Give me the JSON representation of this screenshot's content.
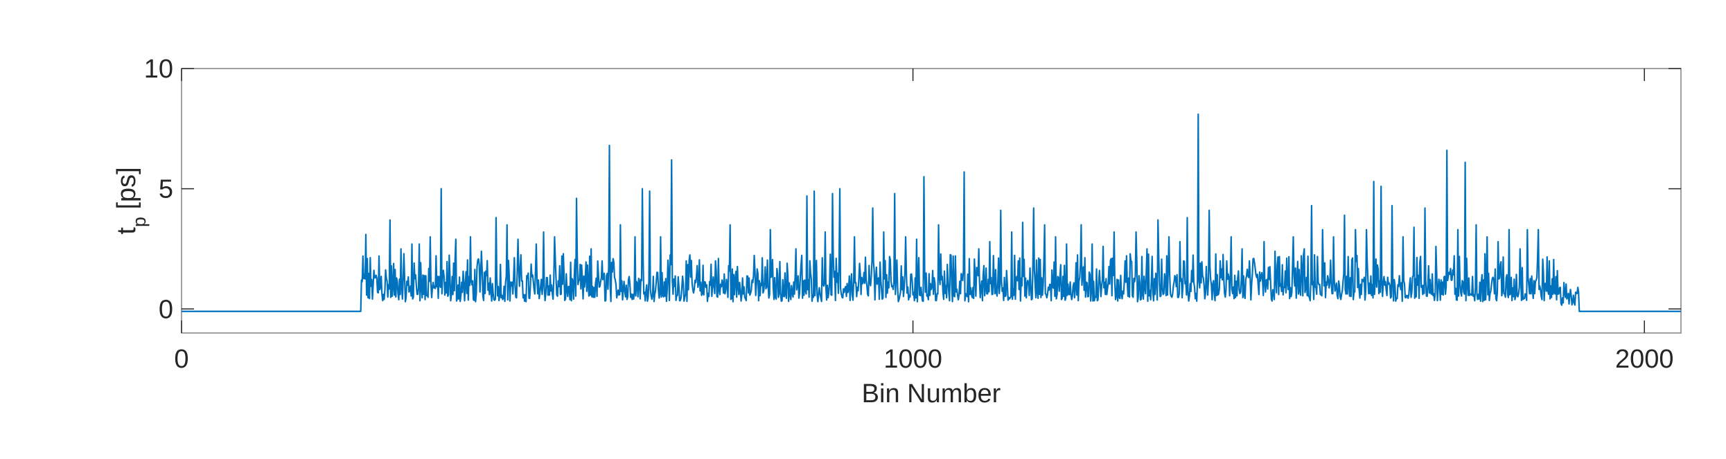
{
  "chart_data": {
    "type": "line",
    "title": "",
    "xlabel": "Bin Number",
    "ylabel_main": "t",
    "ylabel_sub": "p",
    "ylabel_unit": " [ps]",
    "xlim": [
      0,
      2050
    ],
    "ylim": [
      -1,
      10
    ],
    "xticks": [
      0,
      1000,
      2000
    ],
    "xtick_labels": [
      "0",
      "1000",
      "2000"
    ],
    "yticks": [
      0,
      5,
      10
    ],
    "ytick_labels": [
      "0",
      "5",
      "10"
    ],
    "grid": false,
    "line_color": "#0072BD",
    "axis_color": "#262626",
    "box_color": "#808080",
    "baseline_value": -0.1,
    "active_range": [
      245,
      1910
    ],
    "peaks": [
      {
        "x": 248,
        "y": 2.2
      },
      {
        "x": 252,
        "y": 3.1
      },
      {
        "x": 270,
        "y": 2.2
      },
      {
        "x": 285,
        "y": 3.7
      },
      {
        "x": 300,
        "y": 2.5
      },
      {
        "x": 315,
        "y": 2.7
      },
      {
        "x": 325,
        "y": 2.7
      },
      {
        "x": 340,
        "y": 3.0
      },
      {
        "x": 355,
        "y": 5.0
      },
      {
        "x": 375,
        "y": 2.9
      },
      {
        "x": 395,
        "y": 3.0
      },
      {
        "x": 410,
        "y": 2.4
      },
      {
        "x": 430,
        "y": 3.8
      },
      {
        "x": 445,
        "y": 3.5
      },
      {
        "x": 460,
        "y": 2.9
      },
      {
        "x": 485,
        "y": 2.7
      },
      {
        "x": 495,
        "y": 3.2
      },
      {
        "x": 510,
        "y": 3.0
      },
      {
        "x": 520,
        "y": 2.2
      },
      {
        "x": 540,
        "y": 4.6
      },
      {
        "x": 560,
        "y": 2.5
      },
      {
        "x": 575,
        "y": 2.0
      },
      {
        "x": 585,
        "y": 6.8
      },
      {
        "x": 600,
        "y": 3.5
      },
      {
        "x": 620,
        "y": 3.0
      },
      {
        "x": 630,
        "y": 5.0
      },
      {
        "x": 640,
        "y": 4.9
      },
      {
        "x": 655,
        "y": 3.0
      },
      {
        "x": 670,
        "y": 6.2
      },
      {
        "x": 690,
        "y": 2.0
      },
      {
        "x": 705,
        "y": 1.8
      },
      {
        "x": 730,
        "y": 2.0
      },
      {
        "x": 750,
        "y": 3.5
      },
      {
        "x": 780,
        "y": 1.2
      },
      {
        "x": 805,
        "y": 3.3
      },
      {
        "x": 825,
        "y": 1.5
      },
      {
        "x": 840,
        "y": 2.5
      },
      {
        "x": 855,
        "y": 4.7
      },
      {
        "x": 865,
        "y": 4.9
      },
      {
        "x": 880,
        "y": 3.2
      },
      {
        "x": 890,
        "y": 4.8
      },
      {
        "x": 900,
        "y": 5.0
      },
      {
        "x": 920,
        "y": 3.0
      },
      {
        "x": 945,
        "y": 4.2
      },
      {
        "x": 960,
        "y": 3.2
      },
      {
        "x": 975,
        "y": 4.8
      },
      {
        "x": 990,
        "y": 3.0
      },
      {
        "x": 1005,
        "y": 2.9
      },
      {
        "x": 1015,
        "y": 5.5
      },
      {
        "x": 1035,
        "y": 3.5
      },
      {
        "x": 1055,
        "y": 2.2
      },
      {
        "x": 1070,
        "y": 5.7
      },
      {
        "x": 1090,
        "y": 2.5
      },
      {
        "x": 1105,
        "y": 2.8
      },
      {
        "x": 1120,
        "y": 4.1
      },
      {
        "x": 1135,
        "y": 3.2
      },
      {
        "x": 1150,
        "y": 3.6
      },
      {
        "x": 1165,
        "y": 4.2
      },
      {
        "x": 1180,
        "y": 3.5
      },
      {
        "x": 1195,
        "y": 3.0
      },
      {
        "x": 1210,
        "y": 2.7
      },
      {
        "x": 1230,
        "y": 3.5
      },
      {
        "x": 1245,
        "y": 2.7
      },
      {
        "x": 1260,
        "y": 2.6
      },
      {
        "x": 1275,
        "y": 3.2
      },
      {
        "x": 1290,
        "y": 2.0
      },
      {
        "x": 1305,
        "y": 3.2
      },
      {
        "x": 1320,
        "y": 2.5
      },
      {
        "x": 1335,
        "y": 3.7
      },
      {
        "x": 1350,
        "y": 3.0
      },
      {
        "x": 1365,
        "y": 2.8
      },
      {
        "x": 1375,
        "y": 3.8
      },
      {
        "x": 1390,
        "y": 8.1
      },
      {
        "x": 1405,
        "y": 4.1
      },
      {
        "x": 1420,
        "y": 2.0
      },
      {
        "x": 1435,
        "y": 3.0
      },
      {
        "x": 1450,
        "y": 2.5
      },
      {
        "x": 1460,
        "y": 2.0
      },
      {
        "x": 1480,
        "y": 2.8
      },
      {
        "x": 1495,
        "y": 2.4
      },
      {
        "x": 1520,
        "y": 3.0
      },
      {
        "x": 1535,
        "y": 2.5
      },
      {
        "x": 1545,
        "y": 4.3
      },
      {
        "x": 1560,
        "y": 3.3
      },
      {
        "x": 1575,
        "y": 3.0
      },
      {
        "x": 1590,
        "y": 3.9
      },
      {
        "x": 1605,
        "y": 3.3
      },
      {
        "x": 1620,
        "y": 3.3
      },
      {
        "x": 1630,
        "y": 5.3
      },
      {
        "x": 1640,
        "y": 5.1
      },
      {
        "x": 1655,
        "y": 4.3
      },
      {
        "x": 1670,
        "y": 3.0
      },
      {
        "x": 1685,
        "y": 3.4
      },
      {
        "x": 1700,
        "y": 4.2
      },
      {
        "x": 1715,
        "y": 2.6
      },
      {
        "x": 1730,
        "y": 6.6
      },
      {
        "x": 1745,
        "y": 3.3
      },
      {
        "x": 1755,
        "y": 6.1
      },
      {
        "x": 1770,
        "y": 3.5
      },
      {
        "x": 1785,
        "y": 3.0
      },
      {
        "x": 1800,
        "y": 2.8
      },
      {
        "x": 1815,
        "y": 3.3
      },
      {
        "x": 1830,
        "y": 2.5
      },
      {
        "x": 1840,
        "y": 3.3
      },
      {
        "x": 1855,
        "y": 3.3
      },
      {
        "x": 1870,
        "y": 2.0
      },
      {
        "x": 1885,
        "y": 0.9
      },
      {
        "x": 1895,
        "y": 0.5
      }
    ]
  }
}
